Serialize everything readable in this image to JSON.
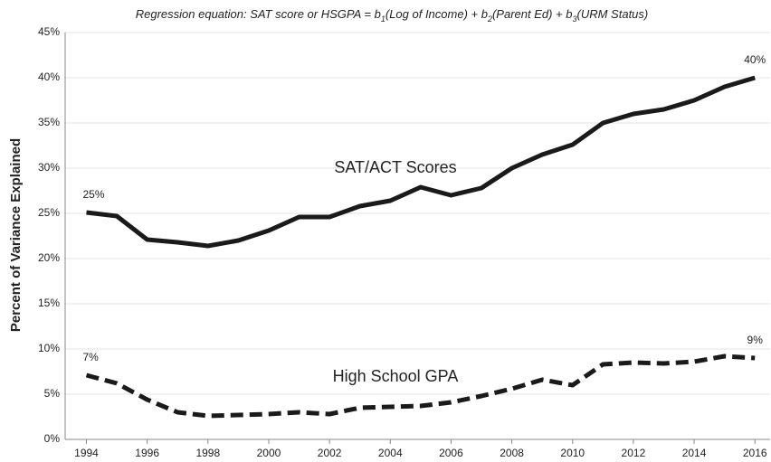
{
  "chart_data": {
    "type": "line",
    "title": [
      "Regression equation:  SAT score or HSGPA = b",
      "1",
      "(Log of Income) + b",
      "2",
      "(Parent Ed) + b",
      "3",
      "(URM Status)"
    ],
    "y_label": "Percent of Variance Explained",
    "x": [
      1994,
      1995,
      1996,
      1997,
      1998,
      1999,
      2000,
      2001,
      2002,
      2003,
      2004,
      2005,
      2006,
      2007,
      2008,
      2009,
      2010,
      2011,
      2012,
      2013,
      2014,
      2015,
      2016
    ],
    "series": [
      {
        "name": "SAT/ACT Scores",
        "color": "#1a1a1a",
        "dashed": false,
        "values": [
          25.1,
          24.7,
          22.1,
          21.8,
          21.4,
          22.0,
          23.1,
          24.6,
          24.6,
          25.8,
          26.4,
          27.9,
          27.0,
          27.8,
          30.0,
          31.5,
          32.6,
          35.0,
          36.0,
          36.5,
          37.5,
          39.0,
          40.0
        ],
        "value_labels": [
          "25%",
          null,
          null,
          null,
          null,
          null,
          null,
          null,
          null,
          null,
          null,
          null,
          null,
          null,
          null,
          null,
          null,
          null,
          null,
          null,
          null,
          null,
          "40%"
        ]
      },
      {
        "name": "High School GPA",
        "color": "#1a1a1a",
        "dashed": true,
        "values": [
          7.1,
          6.2,
          4.4,
          3.0,
          2.6,
          2.7,
          2.8,
          3.0,
          2.8,
          3.5,
          3.6,
          3.7,
          4.1,
          4.8,
          5.6,
          6.6,
          6.0,
          8.3,
          8.5,
          8.4,
          8.6,
          9.2,
          9.0
        ],
        "value_labels": [
          "7%",
          null,
          null,
          null,
          null,
          null,
          null,
          null,
          null,
          null,
          null,
          null,
          null,
          null,
          null,
          null,
          null,
          null,
          null,
          null,
          null,
          null,
          "9%"
        ]
      }
    ],
    "xlim": [
      1993.3,
      2016.5
    ],
    "xticks": [
      1994,
      1996,
      1998,
      2000,
      2002,
      2004,
      2006,
      2008,
      2010,
      2012,
      2014,
      2016
    ],
    "ylim": [
      0,
      45
    ],
    "yticks": [
      {
        "value": 0,
        "label": "0%"
      },
      {
        "value": 5,
        "label": "5%"
      },
      {
        "value": 10,
        "label": "10%"
      },
      {
        "value": 15,
        "label": "15%"
      },
      {
        "value": 20,
        "label": "20%"
      },
      {
        "value": 25,
        "label": "25%"
      },
      {
        "value": 30,
        "label": "30%"
      },
      {
        "value": 35,
        "label": "35%"
      },
      {
        "value": 40,
        "label": "40%"
      },
      {
        "value": 45,
        "label": "45%"
      }
    ],
    "grid": true
  }
}
